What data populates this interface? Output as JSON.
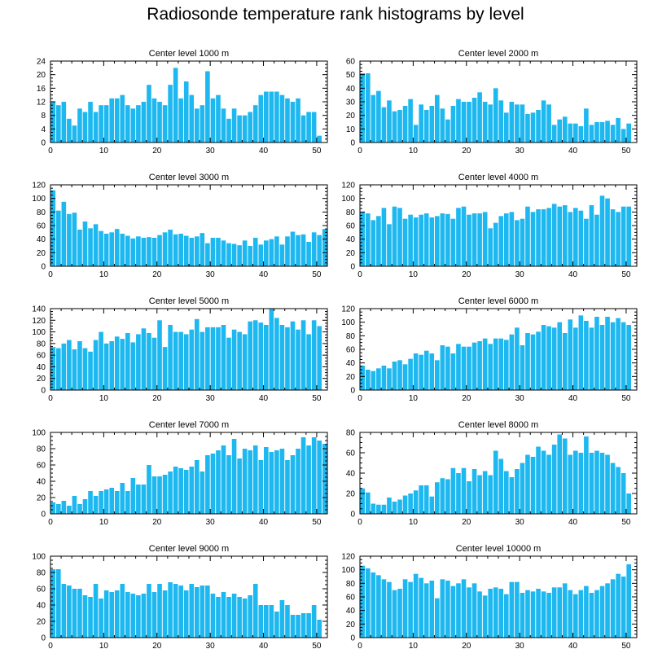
{
  "page_title": "Radiosonde temperature rank histograms by level",
  "bar_color": "#1EB8F0",
  "chart_data": [
    {
      "type": "bar",
      "title": "Center level 1000 m",
      "xlabel": "",
      "ylabel": "",
      "xlim": [
        0,
        52
      ],
      "ylim": [
        0,
        24
      ],
      "xticks": [
        0,
        10,
        20,
        30,
        40,
        50
      ],
      "yticks": [
        0,
        4,
        8,
        12,
        16,
        20,
        24
      ],
      "values": [
        12,
        11,
        12,
        7,
        5,
        10,
        9,
        12,
        9,
        11,
        11,
        13,
        13,
        14,
        11,
        10,
        11,
        12,
        17,
        13,
        12,
        11,
        17,
        22,
        13,
        18,
        14,
        10,
        11,
        21,
        13,
        14,
        10,
        7,
        10,
        8,
        8,
        9,
        11,
        14,
        15,
        15,
        15,
        14,
        13,
        12,
        13,
        8,
        9,
        9,
        2
      ]
    },
    {
      "type": "bar",
      "title": "Center level 2000 m",
      "xlabel": "",
      "ylabel": "",
      "xlim": [
        0,
        52
      ],
      "ylim": [
        0,
        60
      ],
      "xticks": [
        0,
        10,
        20,
        30,
        40,
        50
      ],
      "yticks": [
        0,
        10,
        20,
        30,
        40,
        50,
        60
      ],
      "values": [
        51,
        51,
        35,
        38,
        26,
        31,
        23,
        24,
        27,
        32,
        13,
        28,
        24,
        27,
        35,
        25,
        17,
        27,
        32,
        30,
        30,
        33,
        37,
        30,
        28,
        40,
        31,
        22,
        30,
        28,
        28,
        21,
        22,
        24,
        31,
        28,
        13,
        17,
        19,
        14,
        14,
        12,
        25,
        13,
        15,
        15,
        16,
        13,
        18,
        10,
        14
      ]
    },
    {
      "type": "bar",
      "title": "Center level 3000 m",
      "xlabel": "",
      "ylabel": "",
      "xlim": [
        0,
        52
      ],
      "ylim": [
        0,
        120
      ],
      "xticks": [
        0,
        10,
        20,
        30,
        40,
        50
      ],
      "yticks": [
        0,
        20,
        40,
        60,
        80,
        100,
        120
      ],
      "values": [
        112,
        82,
        95,
        77,
        79,
        54,
        66,
        56,
        62,
        52,
        48,
        50,
        55,
        48,
        45,
        41,
        44,
        42,
        43,
        42,
        46,
        50,
        54,
        47,
        48,
        45,
        42,
        44,
        49,
        34,
        42,
        42,
        38,
        34,
        33,
        31,
        38,
        30,
        42,
        32,
        38,
        40,
        44,
        32,
        44,
        51,
        46,
        47,
        36,
        50,
        46,
        55
      ]
    },
    {
      "type": "bar",
      "title": "Center level 4000 m",
      "xlabel": "",
      "ylabel": "",
      "xlim": [
        0,
        52
      ],
      "ylim": [
        0,
        120
      ],
      "xticks": [
        0,
        10,
        20,
        30,
        40,
        50
      ],
      "yticks": [
        0,
        20,
        40,
        60,
        80,
        100,
        120
      ],
      "values": [
        80,
        78,
        68,
        74,
        86,
        62,
        88,
        86,
        70,
        76,
        72,
        76,
        78,
        72,
        74,
        78,
        77,
        70,
        86,
        88,
        76,
        78,
        78,
        80,
        56,
        64,
        74,
        78,
        80,
        68,
        70,
        88,
        80,
        84,
        84,
        86,
        92,
        88,
        90,
        80,
        86,
        82,
        70,
        90,
        76,
        104,
        100,
        84,
        80,
        88,
        88
      ]
    },
    {
      "type": "bar",
      "title": "Center level 5000 m",
      "xlabel": "",
      "ylabel": "",
      "xlim": [
        0,
        52
      ],
      "ylim": [
        0,
        140
      ],
      "xticks": [
        0,
        10,
        20,
        30,
        40,
        50
      ],
      "yticks": [
        0,
        20,
        40,
        60,
        80,
        100,
        120,
        140
      ],
      "values": [
        74,
        72,
        80,
        86,
        70,
        84,
        72,
        66,
        86,
        100,
        80,
        84,
        92,
        88,
        98,
        82,
        96,
        106,
        98,
        90,
        120,
        74,
        112,
        100,
        100,
        96,
        104,
        122,
        100,
        108,
        108,
        108,
        112,
        90,
        104,
        100,
        96,
        118,
        120,
        116,
        112,
        140,
        124,
        112,
        108,
        118,
        104,
        120,
        96,
        120,
        110
      ]
    },
    {
      "type": "bar",
      "title": "Center level 6000 m",
      "xlabel": "",
      "ylabel": "",
      "xlim": [
        0,
        52
      ],
      "ylim": [
        0,
        120
      ],
      "xticks": [
        0,
        10,
        20,
        30,
        40,
        50
      ],
      "yticks": [
        0,
        20,
        40,
        60,
        80,
        100,
        120
      ],
      "values": [
        36,
        30,
        28,
        32,
        36,
        32,
        42,
        44,
        38,
        46,
        54,
        52,
        58,
        54,
        44,
        66,
        64,
        54,
        68,
        64,
        64,
        70,
        72,
        76,
        68,
        76,
        76,
        74,
        82,
        92,
        66,
        84,
        82,
        86,
        96,
        94,
        92,
        100,
        84,
        104,
        92,
        110,
        102,
        92,
        108,
        96,
        108,
        100,
        106,
        100,
        96
      ]
    },
    {
      "type": "bar",
      "title": "Center level 7000 m",
      "xlabel": "",
      "ylabel": "",
      "xlim": [
        0,
        52
      ],
      "ylim": [
        0,
        100
      ],
      "xticks": [
        0,
        10,
        20,
        30,
        40,
        50
      ],
      "yticks": [
        0,
        20,
        40,
        60,
        80,
        100
      ],
      "values": [
        14,
        12,
        16,
        10,
        22,
        12,
        18,
        28,
        22,
        28,
        30,
        32,
        28,
        38,
        28,
        44,
        36,
        36,
        60,
        46,
        46,
        48,
        52,
        58,
        56,
        54,
        58,
        66,
        52,
        72,
        74,
        78,
        84,
        72,
        92,
        68,
        80,
        78,
        84,
        66,
        82,
        76,
        78,
        80,
        66,
        72,
        80,
        94,
        84,
        94,
        90,
        86
      ]
    },
    {
      "type": "bar",
      "title": "Center level 8000 m",
      "xlabel": "",
      "ylabel": "",
      "xlim": [
        0,
        52
      ],
      "ylim": [
        0,
        80
      ],
      "xticks": [
        0,
        10,
        20,
        30,
        40,
        50
      ],
      "yticks": [
        0,
        20,
        40,
        60,
        80
      ],
      "values": [
        25,
        21,
        10,
        9,
        9,
        16,
        12,
        14,
        18,
        20,
        23,
        28,
        28,
        17,
        31,
        35,
        34,
        45,
        40,
        45,
        32,
        44,
        38,
        42,
        38,
        62,
        54,
        42,
        36,
        44,
        50,
        58,
        56,
        66,
        62,
        58,
        68,
        78,
        74,
        58,
        62,
        60,
        76,
        60,
        62,
        60,
        58,
        50,
        46,
        40,
        20
      ]
    },
    {
      "type": "bar",
      "title": "Center level 9000 m",
      "xlabel": "",
      "ylabel": "",
      "xlim": [
        0,
        52
      ],
      "ylim": [
        0,
        100
      ],
      "xticks": [
        0,
        10,
        20,
        30,
        40,
        50
      ],
      "yticks": [
        0,
        20,
        40,
        60,
        80,
        100
      ],
      "values": [
        84,
        84,
        66,
        64,
        60,
        60,
        52,
        50,
        66,
        48,
        58,
        56,
        58,
        66,
        56,
        54,
        52,
        54,
        66,
        56,
        66,
        58,
        68,
        66,
        64,
        58,
        66,
        62,
        64,
        64,
        54,
        50,
        56,
        50,
        54,
        50,
        48,
        52,
        66,
        40,
        40,
        40,
        32,
        46,
        40,
        28,
        28,
        30,
        30,
        40,
        22
      ]
    },
    {
      "type": "bar",
      "title": "Center level 10000 m",
      "xlabel": "",
      "ylabel": "",
      "xlim": [
        0,
        52
      ],
      "ylim": [
        0,
        120
      ],
      "xticks": [
        0,
        10,
        20,
        30,
        40,
        50
      ],
      "yticks": [
        0,
        20,
        40,
        60,
        80,
        100,
        120
      ],
      "values": [
        106,
        102,
        96,
        92,
        86,
        82,
        70,
        72,
        86,
        82,
        94,
        88,
        80,
        84,
        58,
        86,
        84,
        76,
        80,
        86,
        74,
        80,
        68,
        62,
        72,
        74,
        72,
        64,
        82,
        82,
        66,
        70,
        68,
        72,
        68,
        66,
        74,
        74,
        80,
        70,
        64,
        70,
        76,
        66,
        70,
        76,
        80,
        86,
        94,
        90,
        108
      ]
    }
  ]
}
